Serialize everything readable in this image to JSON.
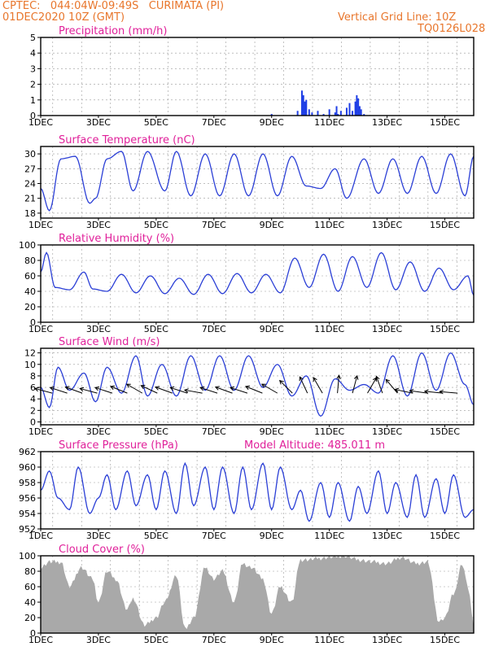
{
  "header": {
    "station_line": "CPTEC:   044:04W-09:49S   CURIMATA (PI)",
    "date_line": "01DEC2020 10Z (GMT)",
    "grid_line": "Vertical Grid Line: 10Z",
    "code": "TQ0126L028"
  },
  "colors": {
    "header": "#e8762c",
    "title": "#e0209a",
    "line": "#2b3fd6",
    "cloud": "#a9a9a9",
    "bar": "#1f3fe6"
  },
  "x_tick_labels": [
    "1DEC",
    "3DEC",
    "5DEC",
    "7DEC",
    "9DEC",
    "11DEC",
    "13DEC",
    "15DEC"
  ],
  "chart_data": [
    {
      "type": "bar",
      "title": "Precipitation (mm/h)",
      "ylim": [
        0,
        5
      ],
      "yticks": [
        "0",
        "1",
        "2",
        "3",
        "4",
        "5"
      ],
      "x_unit": "day of month",
      "x": [
        9.0,
        9.9,
        10.05,
        10.1,
        10.15,
        10.2,
        10.3,
        10.4,
        10.6,
        10.8,
        11.0,
        11.2,
        11.25,
        11.3,
        11.4,
        11.6,
        11.7,
        11.8,
        11.9,
        11.95,
        12.0,
        12.05,
        12.1,
        12.2
      ],
      "values": [
        0.1,
        0.3,
        1.6,
        1.3,
        0.9,
        1.0,
        0.4,
        0.2,
        0.3,
        0.1,
        0.4,
        0.2,
        0.6,
        0.1,
        0.3,
        0.5,
        0.8,
        0.3,
        0.9,
        1.3,
        1.1,
        0.6,
        0.4,
        0.1
      ]
    },
    {
      "type": "line",
      "title": "Surface Temperature (nC)",
      "ylim": [
        17,
        31.5
      ],
      "yticks": [
        "18",
        "21",
        "24",
        "27",
        "30"
      ],
      "x_unit": "day of month",
      "x": [
        1.0,
        1.3,
        1.7,
        2.2,
        2.7,
        2.9,
        3.3,
        3.8,
        4.2,
        4.7,
        5.3,
        5.7,
        6.2,
        6.7,
        7.2,
        7.7,
        8.2,
        8.7,
        9.2,
        9.7,
        10.2,
        10.7,
        11.2,
        11.6,
        12.2,
        12.7,
        13.2,
        13.7,
        14.2,
        14.7,
        15.2,
        15.7,
        16.0
      ],
      "values": [
        23,
        18.5,
        29,
        29.5,
        20,
        21,
        29,
        30.5,
        22.5,
        30.5,
        22.5,
        30.5,
        21.5,
        30,
        21.5,
        30,
        21.5,
        30,
        21.5,
        29.5,
        23.5,
        23,
        27,
        21,
        29,
        22,
        29,
        22,
        29.5,
        22,
        30,
        21.5,
        29.5
      ]
    },
    {
      "type": "line",
      "title": "Relative Humidity (%)",
      "ylim": [
        0,
        100
      ],
      "yticks": [
        "0",
        "20",
        "40",
        "60",
        "80",
        "100"
      ],
      "x_unit": "day of month",
      "x": [
        1.0,
        1.2,
        1.5,
        2.0,
        2.5,
        2.8,
        3.3,
        3.8,
        4.3,
        4.8,
        5.3,
        5.8,
        6.3,
        6.8,
        7.3,
        7.8,
        8.3,
        8.8,
        9.3,
        9.8,
        10.3,
        10.8,
        11.3,
        11.8,
        12.3,
        12.8,
        13.3,
        13.8,
        14.3,
        14.8,
        15.3,
        15.8,
        16.0
      ],
      "values": [
        65,
        90,
        45,
        42,
        65,
        43,
        40,
        62,
        38,
        60,
        37,
        57,
        36,
        62,
        37,
        63,
        38,
        62,
        38,
        83,
        45,
        88,
        40,
        85,
        45,
        90,
        42,
        78,
        40,
        70,
        42,
        60,
        35
      ]
    },
    {
      "type": "line",
      "title": "Surface Wind (m/s)",
      "ylim": [
        -0.5,
        12.8
      ],
      "yticks": [
        "0",
        "2",
        "4",
        "6",
        "8",
        "10",
        "12"
      ],
      "x_unit": "day of month",
      "x": [
        1.0,
        1.3,
        1.6,
        2.0,
        2.5,
        2.9,
        3.3,
        3.8,
        4.3,
        4.7,
        5.2,
        5.7,
        6.2,
        6.7,
        7.2,
        7.7,
        8.2,
        8.7,
        9.2,
        9.7,
        10.2,
        10.7,
        11.2,
        11.7,
        12.2,
        12.7,
        13.2,
        13.7,
        14.2,
        14.7,
        15.2,
        15.7,
        16.0
      ],
      "values": [
        6,
        2.5,
        9.5,
        5.5,
        8.5,
        3.5,
        9.5,
        5,
        11.5,
        4.5,
        10,
        4.5,
        11.5,
        5.5,
        11.5,
        5.5,
        11.5,
        6,
        10,
        4.5,
        8,
        1,
        7.5,
        5.5,
        6.5,
        5,
        11.5,
        4.5,
        12,
        5.5,
        12,
        6.5,
        3
      ],
      "arrows": "wind direction vectors along 5 m/s level"
    },
    {
      "type": "line",
      "title": "Surface Pressure (hPa)",
      "annotation": "Model Altitude: 485.011  m",
      "ylim": [
        952,
        962
      ],
      "yticks": [
        "952",
        "954",
        "956",
        "958",
        "960",
        "962"
      ],
      "x_unit": "day of month",
      "x": [
        1.0,
        1.3,
        1.6,
        2.0,
        2.3,
        2.7,
        3.0,
        3.3,
        3.6,
        4.0,
        4.3,
        4.7,
        5.0,
        5.3,
        5.7,
        6.0,
        6.3,
        6.7,
        7.0,
        7.3,
        7.7,
        8.0,
        8.3,
        8.7,
        9.0,
        9.3,
        9.7,
        10.0,
        10.3,
        10.7,
        11.0,
        11.3,
        11.7,
        12.0,
        12.3,
        12.7,
        13.0,
        13.3,
        13.7,
        14.0,
        14.3,
        14.7,
        15.0,
        15.3,
        15.7,
        16.0
      ],
      "values": [
        957,
        959.5,
        956,
        954.5,
        960,
        954,
        956,
        959,
        954.5,
        959.5,
        955,
        959,
        954.5,
        959.5,
        954,
        960.5,
        955,
        960,
        954.5,
        960,
        954,
        960,
        954.5,
        960.5,
        954.5,
        960,
        954.5,
        957,
        953,
        958,
        953.5,
        958,
        953,
        957.5,
        954,
        959.5,
        954,
        958,
        953.5,
        959,
        953.5,
        958.5,
        954,
        959,
        953.5,
        954.5
      ]
    },
    {
      "type": "area",
      "title": "Cloud Cover (%)",
      "ylim": [
        0,
        100
      ],
      "yticks": [
        "0",
        "20",
        "40",
        "60",
        "80",
        "100"
      ],
      "x_unit": "day of month",
      "x": [
        1.0,
        1.3,
        1.7,
        2.0,
        2.4,
        2.8,
        3.0,
        3.3,
        3.6,
        4.0,
        4.2,
        4.6,
        5.0,
        5.3,
        5.7,
        6.0,
        6.3,
        6.7,
        7.0,
        7.3,
        7.7,
        8.0,
        8.3,
        8.7,
        9.0,
        9.3,
        9.7,
        10.0,
        10.3,
        10.7,
        11.0,
        11.5,
        12.0,
        12.5,
        13.0,
        13.5,
        14.0,
        14.4,
        14.8,
        15.0,
        15.3,
        15.6,
        15.8,
        16.0
      ],
      "values": [
        85,
        92,
        92,
        60,
        85,
        70,
        40,
        80,
        70,
        30,
        45,
        10,
        20,
        40,
        75,
        5,
        20,
        85,
        70,
        80,
        40,
        90,
        85,
        70,
        25,
        60,
        40,
        95,
        95,
        97,
        98,
        100,
        95,
        92,
        90,
        98,
        90,
        92,
        15,
        20,
        50,
        90,
        60,
        10
      ]
    }
  ]
}
